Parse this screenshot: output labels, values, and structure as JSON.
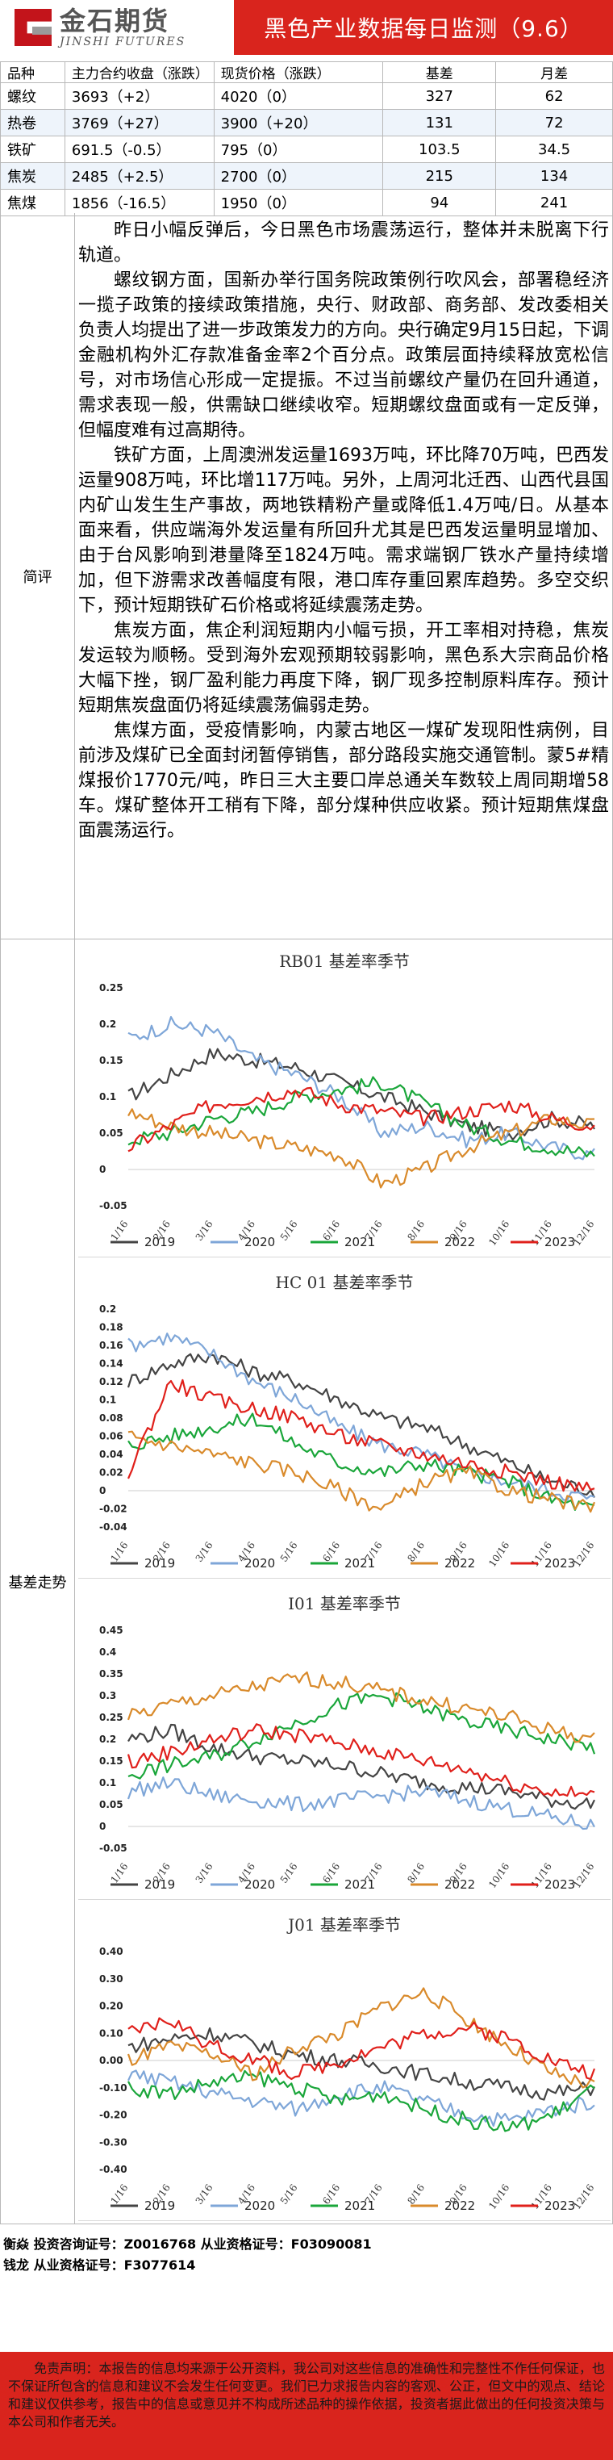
{
  "header": {
    "logo_cn": "金石期货",
    "logo_en": "JINSHI FUTURES",
    "title": "黑色产业数据每日监测（9.6）"
  },
  "price_table": {
    "headers": [
      "品种",
      "主力合约收盘（涨跌）",
      "现货价格（涨跌）",
      "基差",
      "月差"
    ],
    "rows": [
      [
        "螺纹",
        "3693（+2）",
        "4020（0）",
        "327",
        "62"
      ],
      [
        "热卷",
        "3769（+27）",
        "3900（+20）",
        "131",
        "72"
      ],
      [
        "铁矿",
        "691.5（-0.5）",
        "795（0）",
        "103.5",
        "34.5"
      ],
      [
        "焦炭",
        "2485（+2.5）",
        "2700（0）",
        "215",
        "134"
      ],
      [
        "焦煤",
        "1856（-16.5）",
        "1950（0）",
        "94",
        "241"
      ]
    ]
  },
  "review": {
    "label": "简评",
    "paragraphs": [
      "昨日小幅反弹后，今日黑色市场震荡运行，整体并未脱离下行轨道。",
      "螺纹钢方面，国新办举行国务院政策例行吹风会，部署稳经济一揽子政策的接续政策措施，央行、财政部、商务部、发改委相关负责人均提出了进一步政策发力的方向。央行确定9月15日起，下调金融机构外汇存款准备金率2个百分点。政策层面持续释放宽松信号，对市场信心形成一定提振。不过当前螺纹产量仍在回升通道，需求表现一般，供需缺口继续收窄。短期螺纹盘面或有一定反弹，但幅度难有过高期待。",
      "铁矿方面，上周澳洲发运量1693万吨，环比降70万吨，巴西发运量908万吨，环比增117万吨。另外，上周河北迁西、山西代县国内矿山发生生产事故，两地铁精粉产量或降低1.4万吨/日。从基本面来看，供应端海外发运量有所回升尤其是巴西发运量明显增加、由于台风影响到港量降至1824万吨。需求端钢厂铁水产量持续增加，但下游需求改善幅度有限，港口库存重回累库趋势。多空交织下，预计短期铁矿石价格或将延续震荡走势。",
      "焦炭方面，焦企利润短期内小幅亏损，开工率相对持稳，焦炭发运较为顺畅。受到海外宏观预期较弱影响，黑色系大宗商品价格大幅下挫，钢厂盈利能力再度下降，钢厂现多控制原料库存。预计短期焦炭盘面仍将延续震荡偏弱走势。",
      "焦煤方面，受疫情影响，内蒙古地区一煤矿发现阳性病例，目前涉及煤矿已全面封闭暂停销售，部分路段实施交通管制。蒙5#精煤报价1770元/吨，昨日三大主要口岸总通关车数较上周同期增58车。煤矿整体开工稍有下降，部分煤种供应收紧。预计短期焦煤盘面震荡运行。"
    ]
  },
  "basis": {
    "label": "基差走势",
    "series_colors": {
      "2019": "#444444",
      "2020": "#7ea6d8",
      "2021": "#1aa63a",
      "2022": "#d98a2b",
      "2023": "#e0201b",
      "2023_extra": "#1f4fb0"
    }
  },
  "chart_data": [
    {
      "type": "line",
      "title": "RB01 基差率季节",
      "x": [
        "1/16",
        "2/16",
        "3/16",
        "4/16",
        "5/16",
        "6/16",
        "7/16",
        "8/16",
        "9/16",
        "10/16",
        "11/16",
        "12/16"
      ],
      "ylim": [
        -0.05,
        0.25
      ],
      "yticks": [
        "0.25",
        "0.2",
        "0.15",
        "0.1",
        "0.05",
        "0",
        "-0.05"
      ],
      "series": [
        {
          "name": "2019",
          "values": [
            0.1,
            0.13,
            0.16,
            0.15,
            0.14,
            0.12,
            0.1,
            0.08,
            0.06,
            0.05,
            0.07,
            0.06
          ]
        },
        {
          "name": "2020",
          "values": [
            0.18,
            0.2,
            0.19,
            0.15,
            0.13,
            0.1,
            0.05,
            0.06,
            0.04,
            0.05,
            0.03,
            0.02
          ]
        },
        {
          "name": "2021",
          "values": [
            0.04,
            0.05,
            0.07,
            0.08,
            0.1,
            0.11,
            0.12,
            0.09,
            0.06,
            0.04,
            0.03,
            0.02
          ]
        },
        {
          "name": "2022",
          "values": [
            0.08,
            0.06,
            0.05,
            0.04,
            0.03,
            0.02,
            -0.02,
            0.0,
            0.03,
            0.05,
            0.07,
            0.06
          ]
        },
        {
          "name": "2023",
          "values": [
            0.03,
            0.06,
            0.09,
            0.1,
            0.11,
            0.09,
            0.08,
            0.07,
            0.08,
            0.09,
            0.07,
            0.06
          ]
        }
      ]
    },
    {
      "type": "line",
      "title": "HC 01 基差率季节",
      "x": [
        "1/16",
        "2/16",
        "3/16",
        "4/16",
        "5/16",
        "6/16",
        "7/16",
        "8/16",
        "9/16",
        "10/16",
        "11/16",
        "12/16"
      ],
      "ylim": [
        -0.04,
        0.2
      ],
      "yticks": [
        "0.2",
        "0.18",
        "0.16",
        "0.14",
        "0.12",
        "0.1",
        "0.08",
        "0.06",
        "0.04",
        "0.02",
        "0",
        "-0.02",
        "-0.04"
      ],
      "series": [
        {
          "name": "2019",
          "values": [
            0.12,
            0.14,
            0.15,
            0.13,
            0.12,
            0.1,
            0.08,
            0.07,
            0.05,
            0.03,
            0.01,
            0.0
          ]
        },
        {
          "name": "2020",
          "values": [
            0.16,
            0.17,
            0.15,
            0.12,
            0.1,
            0.07,
            0.05,
            0.04,
            0.02,
            0.01,
            0.0,
            -0.01
          ]
        },
        {
          "name": "2021",
          "values": [
            0.05,
            0.06,
            0.07,
            0.08,
            0.05,
            0.03,
            0.02,
            0.03,
            0.02,
            0.01,
            -0.01,
            -0.02
          ]
        },
        {
          "name": "2022",
          "values": [
            0.06,
            0.05,
            0.04,
            0.03,
            0.02,
            0.0,
            -0.02,
            0.01,
            0.02,
            0.0,
            -0.01,
            -0.02
          ]
        },
        {
          "name": "2023",
          "values": [
            0.02,
            0.12,
            0.1,
            0.09,
            0.08,
            0.06,
            0.05,
            0.04,
            0.03,
            0.02,
            0.01,
            0.0
          ]
        }
      ]
    },
    {
      "type": "line",
      "title": "I01 基差率季节",
      "x": [
        "1/16",
        "2/16",
        "3/16",
        "4/16",
        "5/16",
        "6/16",
        "7/16",
        "8/16",
        "9/16",
        "10/16",
        "11/16",
        "12/16"
      ],
      "ylim": [
        -0.05,
        0.45
      ],
      "yticks": [
        "0.45",
        "0.4",
        "0.35",
        "0.3",
        "0.25",
        "0.2",
        "0.15",
        "0.1",
        "0.05",
        "0",
        "-0.05"
      ],
      "series": [
        {
          "name": "2019",
          "values": [
            0.2,
            0.22,
            0.18,
            0.16,
            0.15,
            0.14,
            0.12,
            0.1,
            0.09,
            0.08,
            0.06,
            0.05
          ]
        },
        {
          "name": "2020",
          "values": [
            0.08,
            0.1,
            0.07,
            0.06,
            0.05,
            0.06,
            0.07,
            0.08,
            0.06,
            0.04,
            0.02,
            0.0
          ]
        },
        {
          "name": "2021",
          "values": [
            0.12,
            0.14,
            0.16,
            0.2,
            0.24,
            0.28,
            0.3,
            0.27,
            0.24,
            0.22,
            0.2,
            0.18
          ]
        },
        {
          "name": "2022",
          "values": [
            0.25,
            0.28,
            0.3,
            0.32,
            0.34,
            0.33,
            0.31,
            0.29,
            0.27,
            0.25,
            0.22,
            0.2
          ]
        },
        {
          "name": "2023",
          "values": [
            0.15,
            0.17,
            0.2,
            0.22,
            0.21,
            0.19,
            0.17,
            0.15,
            0.13,
            0.1,
            0.08,
            0.07
          ]
        }
      ]
    },
    {
      "type": "line",
      "title": "J01 基差率季节",
      "x": [
        "1/16",
        "2/16",
        "3/16",
        "4/16",
        "5/16",
        "6/16",
        "7/16",
        "8/16",
        "9/16",
        "10/16",
        "11/16",
        "12/16"
      ],
      "ylim": [
        -0.4,
        0.4
      ],
      "yticks": [
        "0.40",
        "0.30",
        "0.20",
        "0.10",
        "0.00",
        "-0.10",
        "-0.20",
        "-0.30",
        "-0.40"
      ],
      "series": [
        {
          "name": "2019",
          "values": [
            0.05,
            0.08,
            0.1,
            0.06,
            0.02,
            0.0,
            -0.02,
            -0.05,
            -0.08,
            -0.1,
            -0.12,
            -0.1
          ]
        },
        {
          "name": "2020",
          "values": [
            -0.05,
            -0.08,
            -0.12,
            -0.15,
            -0.18,
            -0.12,
            -0.1,
            -0.15,
            -0.2,
            -0.22,
            -0.18,
            -0.15
          ]
        },
        {
          "name": "2021",
          "values": [
            -0.1,
            -0.12,
            -0.08,
            -0.06,
            -0.1,
            -0.15,
            -0.12,
            -0.18,
            -0.22,
            -0.25,
            -0.2,
            -0.1
          ]
        },
        {
          "name": "2022",
          "values": [
            0.0,
            0.05,
            0.02,
            -0.05,
            0.05,
            0.1,
            0.2,
            0.25,
            0.15,
            0.05,
            -0.05,
            -0.1
          ]
        },
        {
          "name": "2023",
          "values": [
            0.1,
            0.15,
            0.05,
            0.0,
            -0.05,
            0.0,
            0.05,
            0.1,
            0.12,
            0.08,
            0.0,
            -0.05
          ]
        }
      ]
    }
  ],
  "footer": {
    "analysts": [
      "衡焱 投资咨询证号：Z0016768 从业资格证号：F03090081",
      "钱龙 从业资格证号：F3077614"
    ],
    "disclaimer": "免责声明：本报告的信息均来源于公开资料，我公司对这些信息的准确性和完整性不作任何保证，也不保证所包含的信息和建议不会发生任何变更。我们已力求报告内容的客观、公正，但文中的观点、结论和建议仅供参考，报告中的信息或意见并不构成所述品种的操作依据，投资者据此做出的任何投资决策与本公司和作者无关。"
  }
}
